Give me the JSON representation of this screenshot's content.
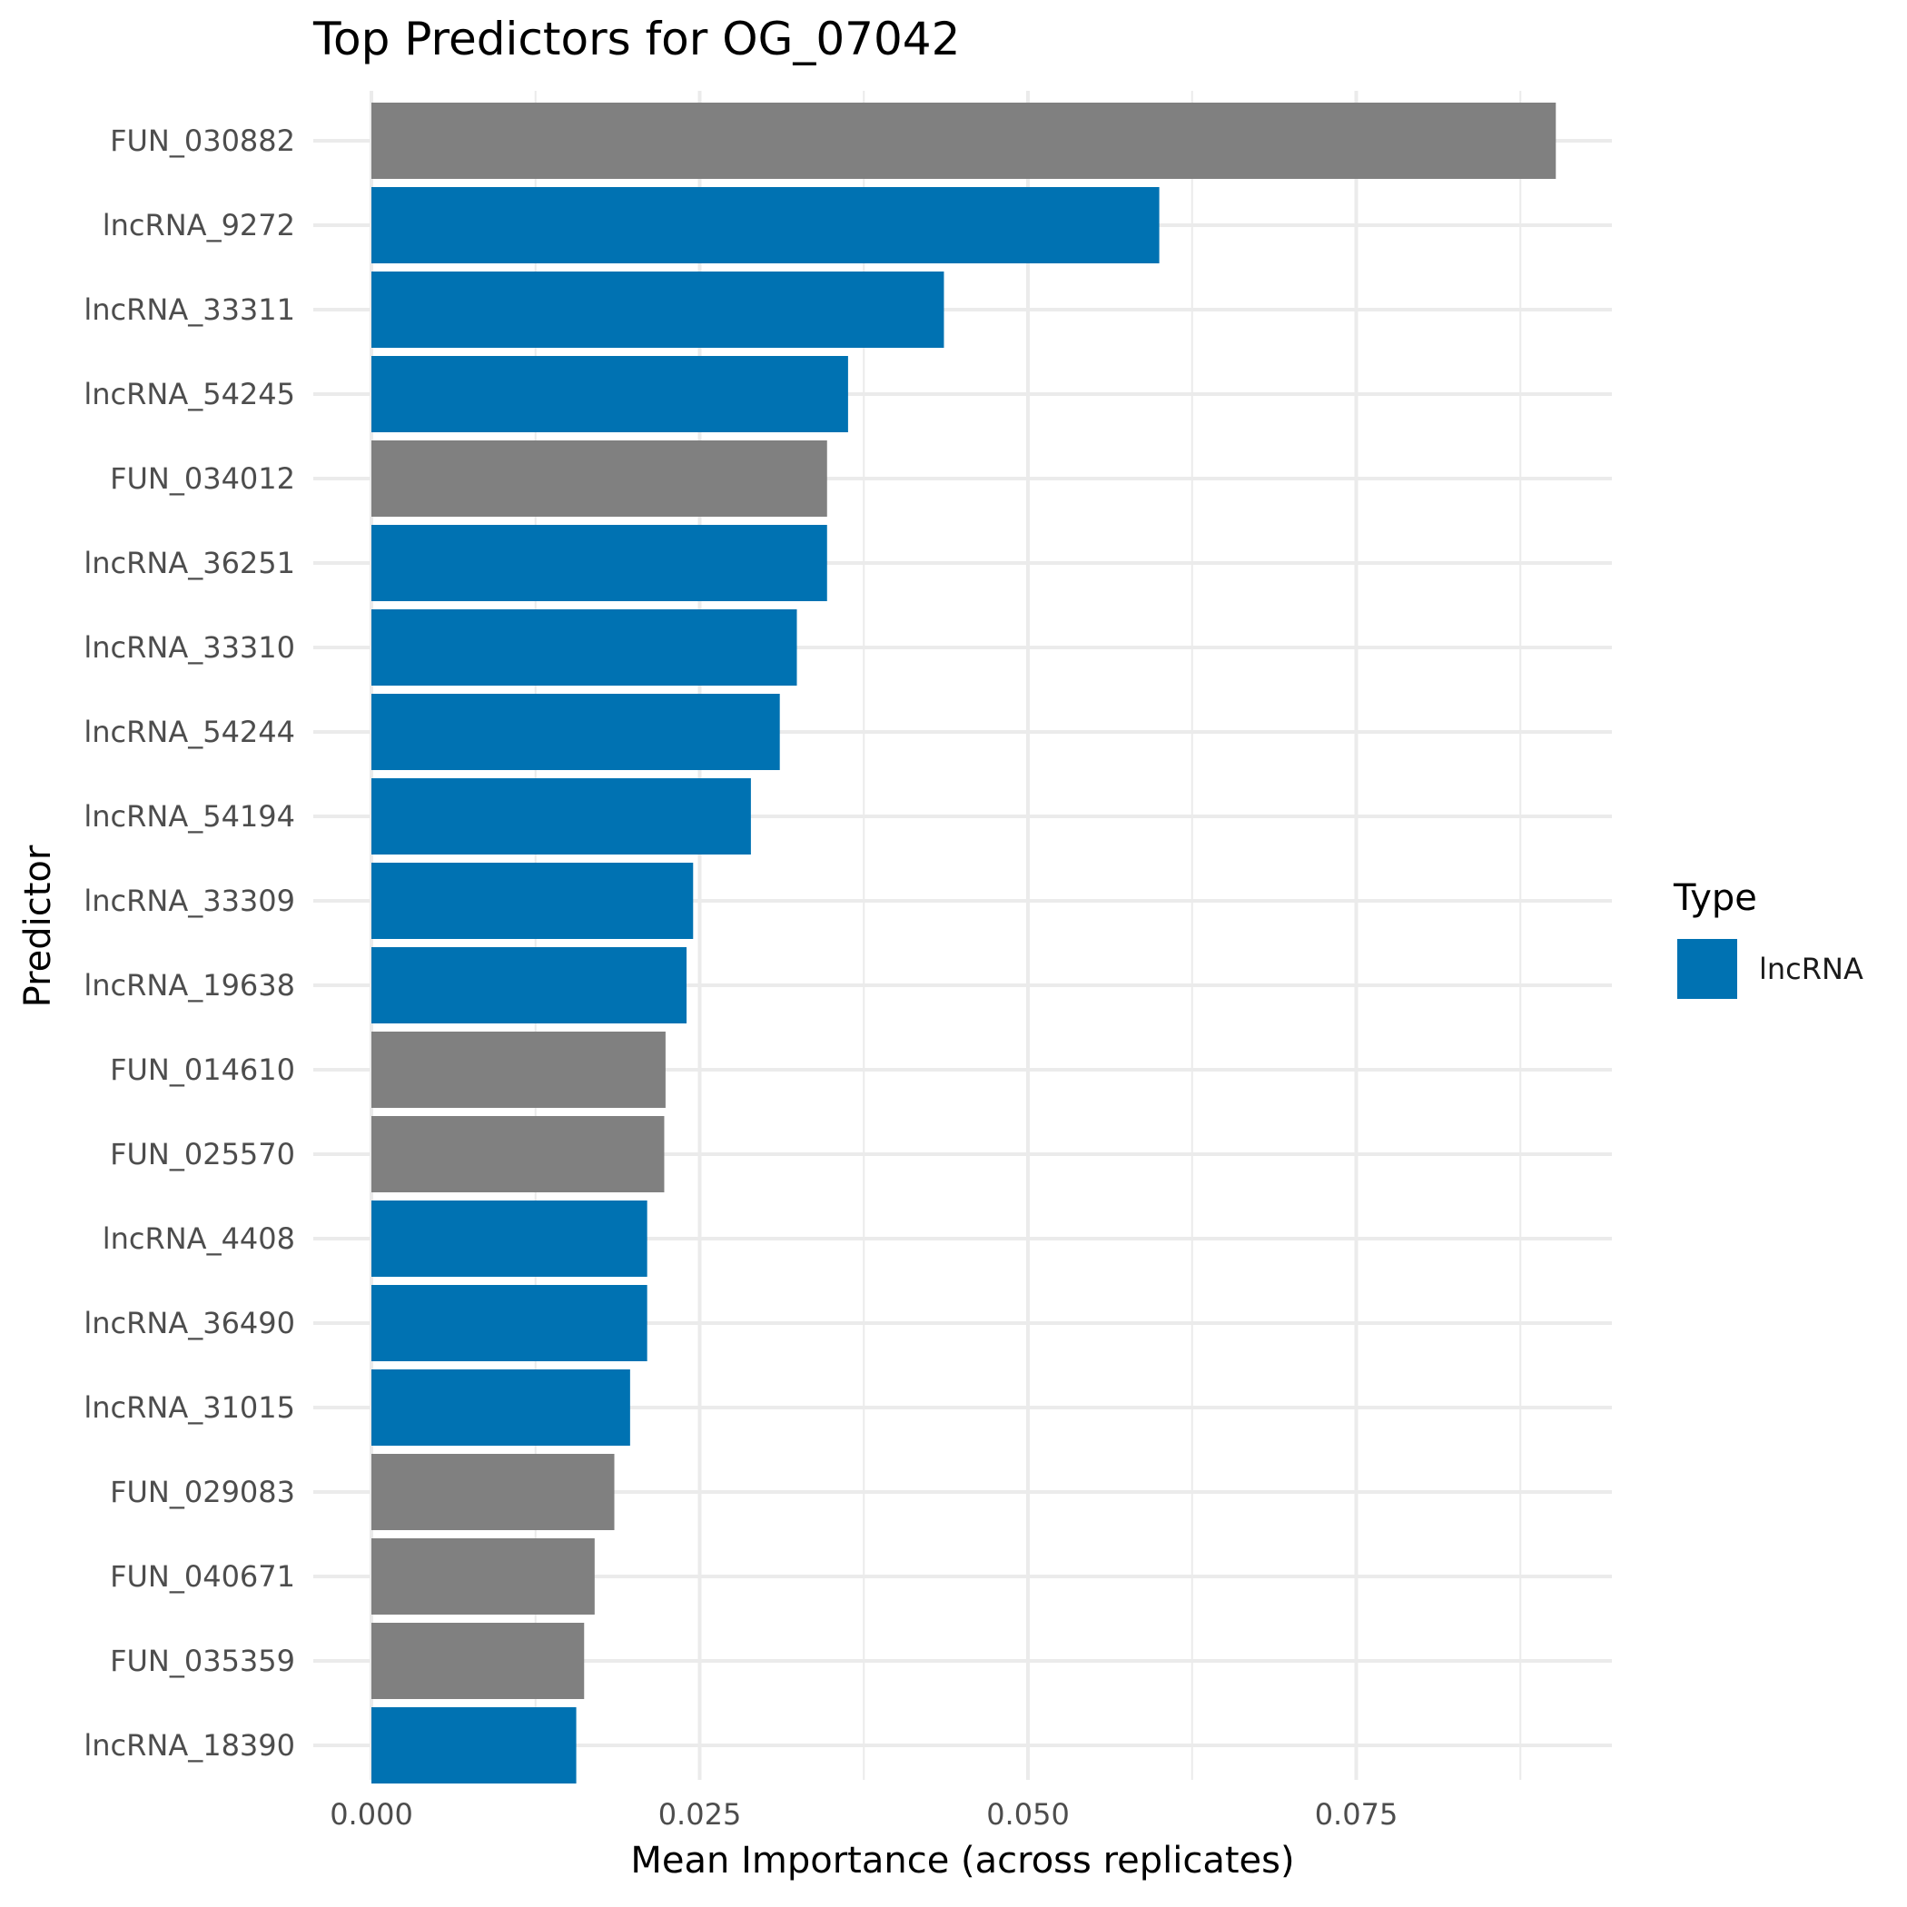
{
  "chart_data": {
    "type": "bar",
    "orientation": "horizontal",
    "title": "Top Predictors for OG_07042",
    "xlabel": "Mean Importance (across replicates)",
    "ylabel": "Predictor",
    "xlim": [
      0,
      0.094
    ],
    "x_ticks": [
      0.0,
      0.025,
      0.05,
      0.075
    ],
    "x_tick_labels": [
      "0.000",
      "0.025",
      "0.050",
      "0.075"
    ],
    "grid": true,
    "legend": {
      "title": "Type",
      "placement": "right",
      "entries": [
        {
          "label": "lncRNA",
          "color": "#0072b2"
        }
      ]
    },
    "colors": {
      "lncRNA": "#0072b2",
      "other": "#808080"
    },
    "categories": [
      "FUN_030882",
      "lncRNA_9272",
      "lncRNA_33311",
      "lncRNA_54245",
      "FUN_034012",
      "lncRNA_36251",
      "lncRNA_33310",
      "lncRNA_54244",
      "lncRNA_54194",
      "lncRNA_33309",
      "lncRNA_19638",
      "FUN_014610",
      "FUN_025570",
      "lncRNA_4408",
      "lncRNA_36490",
      "lncRNA_31015",
      "FUN_029083",
      "FUN_040671",
      "FUN_035359",
      "lncRNA_18390"
    ],
    "values": [
      0.0902,
      0.06,
      0.0436,
      0.0363,
      0.0347,
      0.0347,
      0.0324,
      0.0311,
      0.0289,
      0.0245,
      0.024,
      0.0224,
      0.0223,
      0.021,
      0.021,
      0.0197,
      0.0185,
      0.017,
      0.0162,
      0.0156
    ],
    "types": [
      "other",
      "lncRNA",
      "lncRNA",
      "lncRNA",
      "other",
      "lncRNA",
      "lncRNA",
      "lncRNA",
      "lncRNA",
      "lncRNA",
      "lncRNA",
      "other",
      "other",
      "lncRNA",
      "lncRNA",
      "lncRNA",
      "other",
      "other",
      "other",
      "lncRNA"
    ]
  }
}
